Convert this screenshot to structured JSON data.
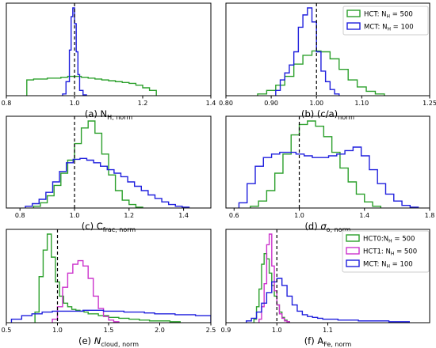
{
  "figure": {
    "background": "#ffffff"
  },
  "colors": {
    "hct": "#2ca02c",
    "hct1": "#cc33cc",
    "mct": "#1f1fdd",
    "ref_line": "#000000"
  },
  "chart_data": [
    {
      "id": "a",
      "type": "histogram",
      "caption": "(a) N",
      "caption_sub": "H, norm",
      "caption_italic": false,
      "xlim": [
        0.8,
        1.4
      ],
      "xticks": [
        0.8,
        1.0,
        1.2,
        1.4
      ],
      "xtick_labels": [
        "0.8",
        "1.0",
        "1.2",
        "1.4"
      ],
      "ref_x": 1.0,
      "legend": [],
      "series": [
        {
          "name": "HCT",
          "color": "#2ca02c",
          "edges": [
            0.86,
            0.88,
            0.9,
            0.92,
            0.94,
            0.96,
            0.98,
            1.0,
            1.02,
            1.04,
            1.06,
            1.08,
            1.1,
            1.12,
            1.14,
            1.16,
            1.18,
            1.2,
            1.22,
            1.24
          ],
          "counts": [
            0.18,
            0.19,
            0.19,
            0.2,
            0.2,
            0.21,
            0.22,
            0.22,
            0.21,
            0.2,
            0.19,
            0.18,
            0.17,
            0.16,
            0.15,
            0.14,
            0.12,
            0.09,
            0.06
          ]
        },
        {
          "name": "MCT",
          "color": "#1f1fdd",
          "edges": [
            0.965,
            0.975,
            0.985,
            0.99,
            0.995,
            1.0,
            1.005,
            1.01,
            1.015,
            1.025,
            1.035
          ],
          "counts": [
            0.02,
            0.16,
            0.52,
            0.9,
            1.0,
            0.82,
            0.5,
            0.24,
            0.06,
            0.01
          ]
        }
      ]
    },
    {
      "id": "b",
      "type": "histogram",
      "caption": "(b) (c/a)",
      "caption_sub": "norm",
      "caption_italic": false,
      "xlim": [
        0.8,
        1.25
      ],
      "xticks": [
        0.8,
        0.9,
        1.0,
        1.1,
        1.25
      ],
      "xtick_labels": [
        "0.80",
        "0.90",
        "1.00",
        "1.10",
        "1.25"
      ],
      "ref_x": 1.0,
      "legend": [
        {
          "label": "HCT: N",
          "sub": "H",
          "value": " = 500",
          "color": "#2ca02c"
        },
        {
          "label": "MCT: N",
          "sub": "H",
          "value": " = 100",
          "color": "#1f1fdd"
        }
      ],
      "series": [
        {
          "name": "HCT: NH = 500",
          "color": "#2ca02c",
          "edges": [
            0.87,
            0.89,
            0.91,
            0.93,
            0.95,
            0.97,
            0.99,
            1.01,
            1.03,
            1.05,
            1.07,
            1.09,
            1.11,
            1.13,
            1.15
          ],
          "counts": [
            0.02,
            0.06,
            0.12,
            0.22,
            0.36,
            0.46,
            0.51,
            0.5,
            0.42,
            0.3,
            0.18,
            0.1,
            0.05,
            0.02
          ]
        },
        {
          "name": "MCT: NH = 100",
          "color": "#1f1fdd",
          "edges": [
            0.91,
            0.92,
            0.93,
            0.94,
            0.95,
            0.96,
            0.97,
            0.98,
            0.99,
            1.0,
            1.01,
            1.02,
            1.03,
            1.04,
            1.05
          ],
          "counts": [
            0.06,
            0.18,
            0.26,
            0.35,
            0.5,
            0.78,
            0.92,
            1.0,
            0.84,
            0.5,
            0.28,
            0.16,
            0.07,
            0.02
          ]
        }
      ]
    },
    {
      "id": "c",
      "type": "histogram",
      "caption": "(c) C",
      "caption_sub": "frac, norm",
      "caption_italic": false,
      "xlim": [
        0.75,
        1.5
      ],
      "xticks": [
        0.8,
        1.0,
        1.2,
        1.4
      ],
      "xtick_labels": [
        "0.8",
        "1.0",
        "1.2",
        "1.4"
      ],
      "ref_x": 1.0,
      "legend": [],
      "series": [
        {
          "name": "HCT",
          "color": "#2ca02c",
          "edges": [
            0.85,
            0.875,
            0.9,
            0.925,
            0.95,
            0.975,
            1.0,
            1.025,
            1.05,
            1.075,
            1.1,
            1.125,
            1.15,
            1.175,
            1.2,
            1.225,
            1.25
          ],
          "counts": [
            0.02,
            0.06,
            0.14,
            0.26,
            0.4,
            0.55,
            0.74,
            0.92,
            1.0,
            0.86,
            0.62,
            0.38,
            0.2,
            0.09,
            0.04,
            0.01
          ]
        },
        {
          "name": "MCT",
          "color": "#1f1fdd",
          "edges": [
            0.82,
            0.845,
            0.87,
            0.895,
            0.92,
            0.945,
            0.97,
            0.995,
            1.02,
            1.045,
            1.07,
            1.095,
            1.12,
            1.145,
            1.17,
            1.195,
            1.22,
            1.245,
            1.27,
            1.295,
            1.32,
            1.345,
            1.37,
            1.395,
            1.42
          ],
          "counts": [
            0.02,
            0.05,
            0.1,
            0.18,
            0.3,
            0.42,
            0.52,
            0.56,
            0.57,
            0.55,
            0.52,
            0.48,
            0.44,
            0.4,
            0.36,
            0.3,
            0.25,
            0.2,
            0.15,
            0.11,
            0.07,
            0.04,
            0.02,
            0.01
          ]
        }
      ]
    },
    {
      "id": "d",
      "type": "histogram",
      "caption": "(d) ",
      "caption_sym": "σ",
      "caption_sub": "o, norm",
      "caption_italic": true,
      "xlim": [
        0.55,
        1.8
      ],
      "xticks": [
        0.6,
        1.0,
        1.4,
        1.8
      ],
      "xtick_labels": [
        "0.6",
        "1.0",
        "1.4",
        "1.8"
      ],
      "ref_x": 1.0,
      "legend": [],
      "series": [
        {
          "name": "HCT",
          "color": "#2ca02c",
          "edges": [
            0.7,
            0.75,
            0.8,
            0.85,
            0.9,
            0.95,
            1.0,
            1.05,
            1.1,
            1.15,
            1.2,
            1.25,
            1.3,
            1.35,
            1.4,
            1.45,
            1.5
          ],
          "counts": [
            0.02,
            0.08,
            0.2,
            0.4,
            0.62,
            0.84,
            0.96,
            1.0,
            0.94,
            0.82,
            0.64,
            0.46,
            0.3,
            0.16,
            0.07,
            0.02
          ]
        },
        {
          "name": "MCT",
          "color": "#1f1fdd",
          "edges": [
            0.63,
            0.68,
            0.73,
            0.78,
            0.83,
            0.88,
            0.93,
            0.98,
            1.03,
            1.08,
            1.13,
            1.18,
            1.23,
            1.28,
            1.33,
            1.38,
            1.43,
            1.48,
            1.53,
            1.58,
            1.63,
            1.68,
            1.73
          ],
          "counts": [
            0.06,
            0.28,
            0.48,
            0.58,
            0.62,
            0.64,
            0.64,
            0.62,
            0.6,
            0.58,
            0.58,
            0.6,
            0.62,
            0.66,
            0.7,
            0.6,
            0.44,
            0.28,
            0.16,
            0.08,
            0.03,
            0.01
          ]
        }
      ]
    },
    {
      "id": "e",
      "type": "histogram",
      "caption": "(e) ",
      "caption_sym": "N",
      "caption_sub": "cloud, norm",
      "caption_italic": true,
      "xlim": [
        0.5,
        2.5
      ],
      "xticks": [
        0.5,
        1.0,
        1.5,
        2.0,
        2.5
      ],
      "xtick_labels": [
        "0.5",
        "1.0",
        "1.5",
        "2.0",
        "2.5"
      ],
      "ref_x": 1.0,
      "legend": [],
      "series": [
        {
          "name": "HCT0",
          "color": "#2ca02c",
          "edges": [
            0.78,
            0.82,
            0.86,
            0.9,
            0.94,
            0.98,
            1.02,
            1.06,
            1.1,
            1.14,
            1.18,
            1.22,
            1.26,
            1.3,
            1.4,
            1.5,
            1.6,
            1.7,
            1.8,
            1.9,
            2.0,
            2.1,
            2.2
          ],
          "counts": [
            0.12,
            0.52,
            0.82,
            1.0,
            0.74,
            0.46,
            0.3,
            0.22,
            0.18,
            0.15,
            0.14,
            0.13,
            0.12,
            0.1,
            0.08,
            0.06,
            0.05,
            0.04,
            0.03,
            0.02,
            0.02,
            0.01
          ]
        },
        {
          "name": "HCT1",
          "color": "#cc33cc",
          "edges": [
            0.95,
            1.0,
            1.05,
            1.1,
            1.15,
            1.2,
            1.25,
            1.3,
            1.35,
            1.4,
            1.45,
            1.5,
            1.55,
            1.6
          ],
          "counts": [
            0.04,
            0.18,
            0.4,
            0.56,
            0.66,
            0.7,
            0.64,
            0.5,
            0.3,
            0.16,
            0.07,
            0.03,
            0.01
          ]
        },
        {
          "name": "MCT",
          "color": "#1f1fdd",
          "edges": [
            0.55,
            0.65,
            0.75,
            0.85,
            0.95,
            1.05,
            1.15,
            1.25,
            1.35,
            1.45,
            1.55,
            1.65,
            1.75,
            1.85,
            1.95,
            2.05,
            2.15,
            2.25,
            2.35,
            2.45,
            2.5
          ],
          "counts": [
            0.04,
            0.08,
            0.1,
            0.12,
            0.13,
            0.13,
            0.13,
            0.14,
            0.14,
            0.13,
            0.13,
            0.12,
            0.12,
            0.11,
            0.1,
            0.1,
            0.09,
            0.09,
            0.08,
            0.08
          ]
        }
      ]
    },
    {
      "id": "f",
      "type": "histogram",
      "caption": "(f) A",
      "caption_sub": "Fe, norm",
      "caption_italic": false,
      "xlim": [
        0.9,
        1.3
      ],
      "xticks": [
        0.9,
        1.0,
        1.1
      ],
      "xtick_labels": [
        "0.9",
        "1.0",
        "1.1"
      ],
      "ref_x": 1.0,
      "legend": [
        {
          "label": "HCT0:N",
          "sub": "H",
          "value": " = 500",
          "color": "#2ca02c"
        },
        {
          "label": "HCT1: N",
          "sub": "H",
          "value": " = 500",
          "color": "#cc33cc"
        },
        {
          "label": "MCT: N",
          "sub": "H",
          "value": " = 100",
          "color": "#1f1fdd"
        }
      ],
      "series": [
        {
          "name": "HCT0:NH = 500",
          "color": "#2ca02c",
          "edges": [
            0.955,
            0.96,
            0.965,
            0.97,
            0.975,
            0.98,
            0.985,
            0.99,
            0.995,
            1.0,
            1.005,
            1.01,
            1.015,
            1.02,
            1.025
          ],
          "counts": [
            0.04,
            0.18,
            0.38,
            0.66,
            0.78,
            0.72,
            0.56,
            0.42,
            0.3,
            0.2,
            0.12,
            0.06,
            0.03,
            0.01
          ]
        },
        {
          "name": "HCT1: NH = 500",
          "color": "#cc33cc",
          "edges": [
            0.965,
            0.97,
            0.975,
            0.98,
            0.985,
            0.99,
            0.995,
            1.0,
            1.005,
            1.01,
            1.015,
            1.02,
            1.025
          ],
          "counts": [
            0.04,
            0.18,
            0.44,
            0.88,
            1.0,
            0.64,
            0.36,
            0.2,
            0.1,
            0.05,
            0.02,
            0.01
          ]
        },
        {
          "name": "MCT: NH = 100",
          "color": "#1f1fdd",
          "edges": [
            0.94,
            0.95,
            0.96,
            0.97,
            0.98,
            0.99,
            1.0,
            1.01,
            1.02,
            1.03,
            1.04,
            1.05,
            1.06,
            1.07,
            1.08,
            1.09,
            1.1,
            1.12,
            1.14,
            1.16,
            1.18,
            1.2,
            1.22,
            1.24,
            1.26
          ],
          "counts": [
            0.02,
            0.05,
            0.12,
            0.22,
            0.34,
            0.46,
            0.5,
            0.42,
            0.3,
            0.2,
            0.13,
            0.09,
            0.07,
            0.06,
            0.05,
            0.04,
            0.04,
            0.03,
            0.03,
            0.02,
            0.02,
            0.02,
            0.01,
            0.01
          ]
        }
      ]
    }
  ]
}
